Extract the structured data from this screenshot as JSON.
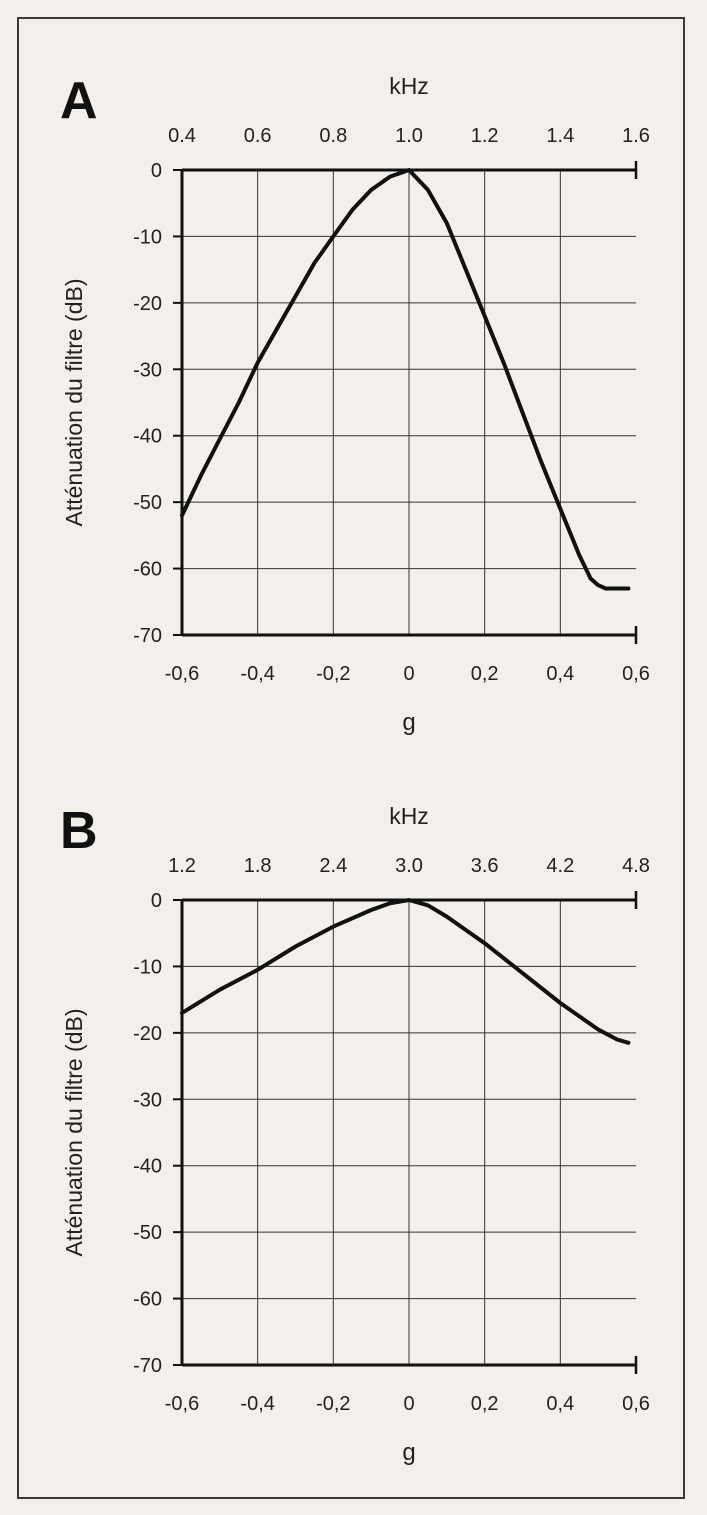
{
  "colors": {
    "background": "#f3efea",
    "frame": "#3a3a3a",
    "grid": "#333333",
    "curve": "#111111",
    "text": "#222222"
  },
  "chart_data": [
    {
      "panel_label": "A",
      "type": "line",
      "top_axis_label": "kHz",
      "top_ticks": [
        "0.4",
        "0.6",
        "0.8",
        "1.0",
        "1.2",
        "1.4",
        "1.6"
      ],
      "xlabel": "g",
      "ylabel": "Atténuation du filtre (dB)",
      "xlim": [
        -0.6,
        0.6
      ],
      "ylim": [
        -70,
        0
      ],
      "x_ticks": [
        "-0,6",
        "-0,4",
        "-0,2",
        "0",
        "0,2",
        "0,4",
        "0,6"
      ],
      "y_ticks": [
        "0",
        "-10",
        "-20",
        "-30",
        "-40",
        "-50",
        "-60",
        "-70"
      ],
      "grid": true,
      "series": [
        {
          "x": [
            -0.6,
            -0.55,
            -0.5,
            -0.45,
            -0.4,
            -0.35,
            -0.3,
            -0.25,
            -0.2,
            -0.15,
            -0.1,
            -0.05,
            0,
            0.05,
            0.1,
            0.15,
            0.2,
            0.25,
            0.3,
            0.35,
            0.4,
            0.45,
            0.48,
            0.5,
            0.52,
            0.55,
            0.58
          ],
          "y": [
            -52,
            -46,
            -40.5,
            -35,
            -29,
            -24,
            -19,
            -14,
            -10,
            -6,
            -3,
            -1,
            0,
            -3,
            -8,
            -15,
            -22,
            -29,
            -36.5,
            -44,
            -51,
            -58,
            -61.5,
            -62.5,
            -63,
            -63,
            -63
          ]
        }
      ]
    },
    {
      "panel_label": "B",
      "type": "line",
      "top_axis_label": "kHz",
      "top_ticks": [
        "1.2",
        "1.8",
        "2.4",
        "3.0",
        "3.6",
        "4.2",
        "4.8"
      ],
      "xlabel": "g",
      "ylabel": "Atténuation du filtre (dB)",
      "xlim": [
        -0.6,
        0.6
      ],
      "ylim": [
        -70,
        0
      ],
      "x_ticks": [
        "-0,6",
        "-0,4",
        "-0,2",
        "0",
        "0,2",
        "0,4",
        "0,6"
      ],
      "y_ticks": [
        "0",
        "-10",
        "-20",
        "-30",
        "-40",
        "-50",
        "-60",
        "-70"
      ],
      "grid": true,
      "series": [
        {
          "x": [
            -0.6,
            -0.5,
            -0.4,
            -0.3,
            -0.2,
            -0.1,
            -0.05,
            0,
            0.05,
            0.1,
            0.2,
            0.3,
            0.4,
            0.5,
            0.55,
            0.58
          ],
          "y": [
            -17,
            -13.5,
            -10.5,
            -7,
            -4,
            -1.5,
            -0.5,
            0,
            -0.8,
            -2.5,
            -6.5,
            -11,
            -15.5,
            -19.5,
            -21,
            -21.5
          ]
        }
      ]
    }
  ]
}
